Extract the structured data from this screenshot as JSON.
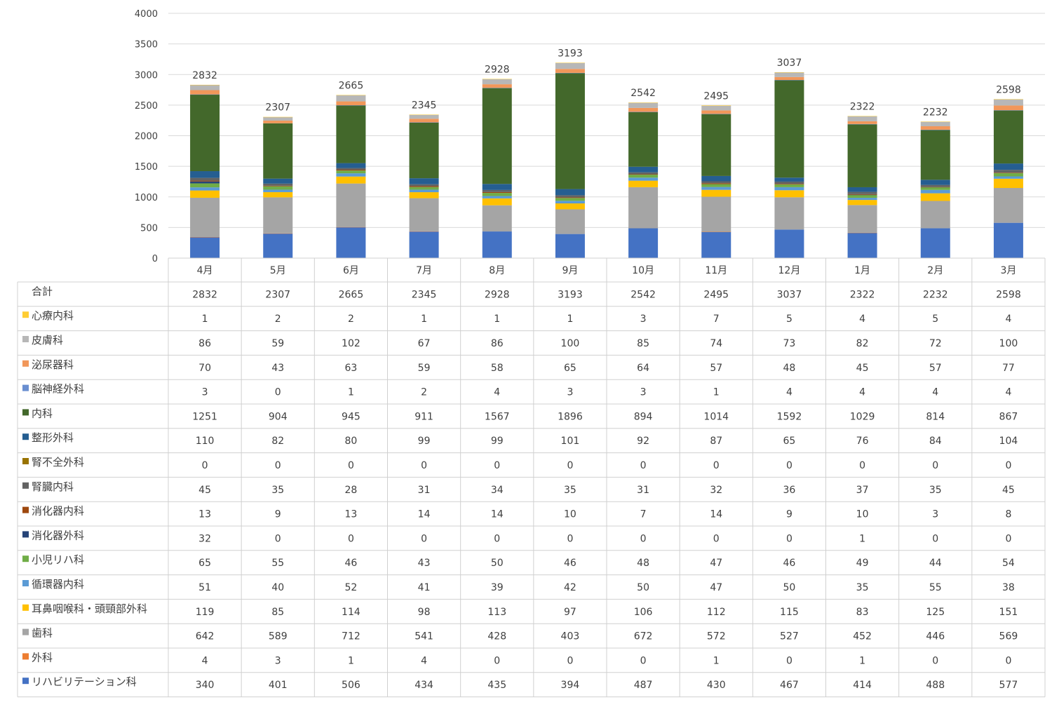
{
  "chart_data": {
    "type": "bar",
    "stacked": true,
    "grid": true,
    "legend": "data-table",
    "categories": [
      "4月",
      "5月",
      "6月",
      "7月",
      "8月",
      "9月",
      "10月",
      "11月",
      "12月",
      "1月",
      "2月",
      "3月"
    ],
    "ylim": [
      0,
      4000
    ],
    "yticks": [
      0,
      500,
      1000,
      1500,
      2000,
      2500,
      3000,
      3500,
      4000
    ],
    "totals": {
      "name": "合計",
      "values": [
        2832,
        2307,
        2665,
        2345,
        2928,
        3193,
        2542,
        2495,
        3037,
        2322,
        2232,
        2598
      ]
    },
    "series": [
      {
        "name": "リハビリテーション科",
        "color": "#4472c4",
        "values": [
          340,
          401,
          506,
          434,
          435,
          394,
          487,
          430,
          467,
          414,
          488,
          577
        ]
      },
      {
        "name": "外科",
        "color": "#ed7d31",
        "values": [
          4,
          3,
          1,
          4,
          0,
          0,
          0,
          1,
          0,
          1,
          0,
          0
        ]
      },
      {
        "name": "歯科",
        "color": "#a5a5a5",
        "values": [
          642,
          589,
          712,
          541,
          428,
          403,
          672,
          572,
          527,
          452,
          446,
          569
        ]
      },
      {
        "name": "耳鼻咽喉科・頭頸部外科",
        "color": "#ffc000",
        "values": [
          119,
          85,
          114,
          98,
          113,
          97,
          106,
          112,
          115,
          83,
          125,
          151
        ]
      },
      {
        "name": "循環器内科",
        "color": "#5b9bd5",
        "values": [
          51,
          40,
          52,
          41,
          39,
          42,
          50,
          47,
          50,
          35,
          55,
          38
        ]
      },
      {
        "name": "小児リハ科",
        "color": "#70ad47",
        "values": [
          65,
          55,
          46,
          43,
          50,
          46,
          48,
          47,
          46,
          49,
          44,
          54
        ]
      },
      {
        "name": "消化器外科",
        "color": "#264478",
        "values": [
          32,
          0,
          0,
          0,
          0,
          0,
          0,
          0,
          0,
          1,
          0,
          0
        ]
      },
      {
        "name": "消化器内科",
        "color": "#9e480e",
        "values": [
          13,
          9,
          13,
          14,
          14,
          10,
          7,
          14,
          9,
          10,
          3,
          8
        ]
      },
      {
        "name": "腎臓内科",
        "color": "#636363",
        "values": [
          45,
          35,
          28,
          31,
          34,
          35,
          31,
          32,
          36,
          37,
          35,
          45
        ]
      },
      {
        "name": "腎不全外科",
        "color": "#997300",
        "values": [
          0,
          0,
          0,
          0,
          0,
          0,
          0,
          0,
          0,
          0,
          0,
          0
        ]
      },
      {
        "name": "整形外科",
        "color": "#255e91",
        "values": [
          110,
          82,
          80,
          99,
          99,
          101,
          92,
          87,
          65,
          76,
          84,
          104
        ]
      },
      {
        "name": "内科",
        "color": "#43682b",
        "values": [
          1251,
          904,
          945,
          911,
          1567,
          1896,
          894,
          1014,
          1592,
          1029,
          814,
          867
        ]
      },
      {
        "name": "脳神経外科",
        "color": "#698ed0",
        "values": [
          3,
          0,
          1,
          2,
          4,
          3,
          3,
          1,
          4,
          4,
          4,
          4
        ]
      },
      {
        "name": "泌尿器科",
        "color": "#f1975a",
        "values": [
          70,
          43,
          63,
          59,
          58,
          65,
          64,
          57,
          48,
          45,
          57,
          77
        ]
      },
      {
        "name": "皮膚科",
        "color": "#b7b7b7",
        "values": [
          86,
          59,
          102,
          67,
          86,
          100,
          85,
          74,
          73,
          82,
          72,
          100
        ]
      },
      {
        "name": "心療内科",
        "color": "#ffcd33",
        "values": [
          1,
          2,
          2,
          1,
          1,
          1,
          3,
          7,
          5,
          4,
          5,
          4
        ]
      }
    ]
  }
}
